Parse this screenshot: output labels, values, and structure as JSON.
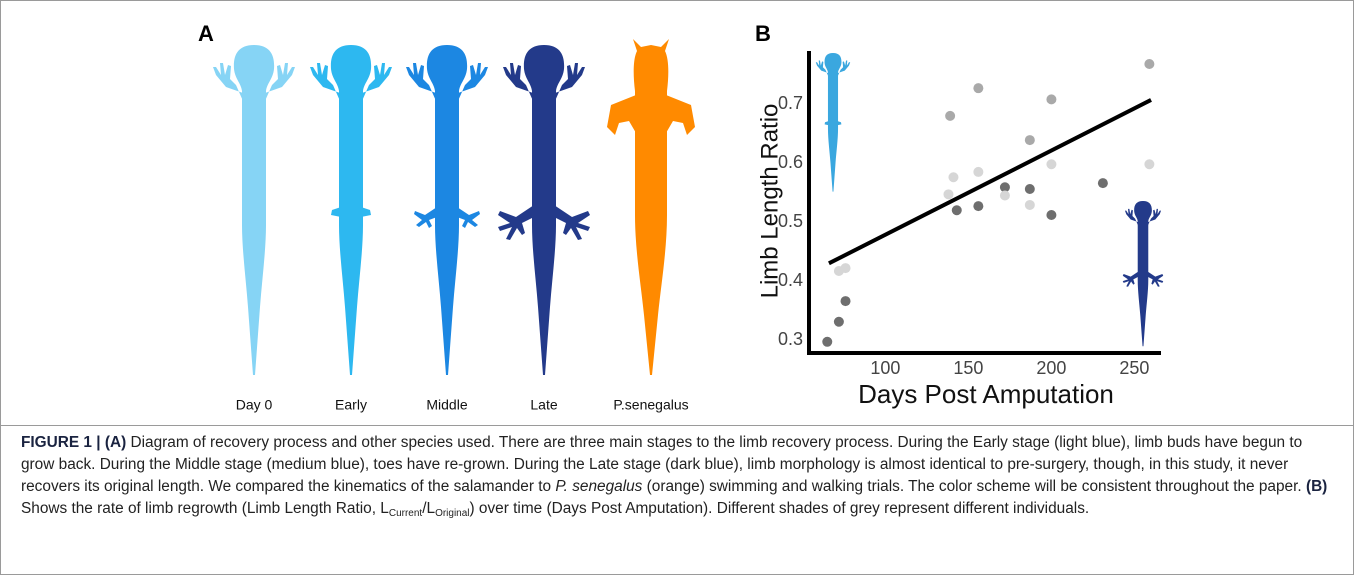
{
  "panel_a": {
    "letter": "A",
    "stages": [
      {
        "label": "Day 0",
        "color": "#86d4f5"
      },
      {
        "label": "Early",
        "color": "#2db8f0"
      },
      {
        "label": "Middle",
        "color": "#1c87e2"
      },
      {
        "label": "Late",
        "color": "#233a8a"
      },
      {
        "label": "P.senegalus",
        "color": "#ff8a00"
      }
    ]
  },
  "chart_data": {
    "type": "scatter",
    "panel_letter": "B",
    "x_label": "Days Post Amputation",
    "y_label": "Limb Length Ratio",
    "xlim": [
      54,
      266
    ],
    "ylim": [
      0.278,
      0.79
    ],
    "xticks": [
      100,
      150,
      200,
      250
    ],
    "yticks": [
      0.3,
      0.4,
      0.5,
      0.6,
      0.7
    ],
    "series": [
      {
        "color": "#6e6e6e",
        "x": [
          65,
          72,
          76,
          143,
          156,
          172,
          187,
          200,
          231
        ],
        "y": [
          0.297,
          0.331,
          0.366,
          0.52,
          0.527,
          0.559,
          0.556,
          0.512,
          0.566
        ]
      },
      {
        "color": "#d6d6d6",
        "x": [
          72,
          76,
          138,
          141,
          156,
          172,
          187,
          200,
          259
        ],
        "y": [
          0.417,
          0.422,
          0.547,
          0.576,
          0.585,
          0.545,
          0.529,
          0.598,
          0.598
        ]
      },
      {
        "color": "#a9a9a9",
        "x": [
          139,
          156,
          187,
          200,
          259
        ],
        "y": [
          0.68,
          0.727,
          0.639,
          0.708,
          0.768
        ]
      }
    ],
    "trend_line": {
      "color": "#000000",
      "x": [
        66,
        260
      ],
      "y": [
        0.43,
        0.707
      ]
    }
  },
  "caption": [
    {
      "text": "FIGURE 1 | (A)",
      "style": "bold"
    },
    {
      "text": " Diagram of recovery process and other species used. There are three main stages to the limb recovery process. During the Early stage (light blue), limb buds have begun to grow back. During the Middle stage (medium blue), toes have re-grown. During the Late stage (dark blue), limb morphology is almost identical to pre-surgery, though, in this study, it never recovers its original length. We compared the kinematics of the salamander to ",
      "style": "normal"
    },
    {
      "text": "P. senegalus",
      "style": "italic"
    },
    {
      "text": " (orange) swimming and walking trials. The color scheme will be consistent throughout the paper. ",
      "style": "normal"
    },
    {
      "text": "(B)",
      "style": "bold"
    },
    {
      "text": " Shows the rate of limb regrowth (Limb Length Ratio, L",
      "style": "normal"
    },
    {
      "text": "Current",
      "style": "sub"
    },
    {
      "text": "/L",
      "style": "normal"
    },
    {
      "text": "Original",
      "style": "sub"
    },
    {
      "text": ") over time (Days Post Amputation). Different shades of grey represent different individuals.",
      "style": "normal"
    }
  ]
}
